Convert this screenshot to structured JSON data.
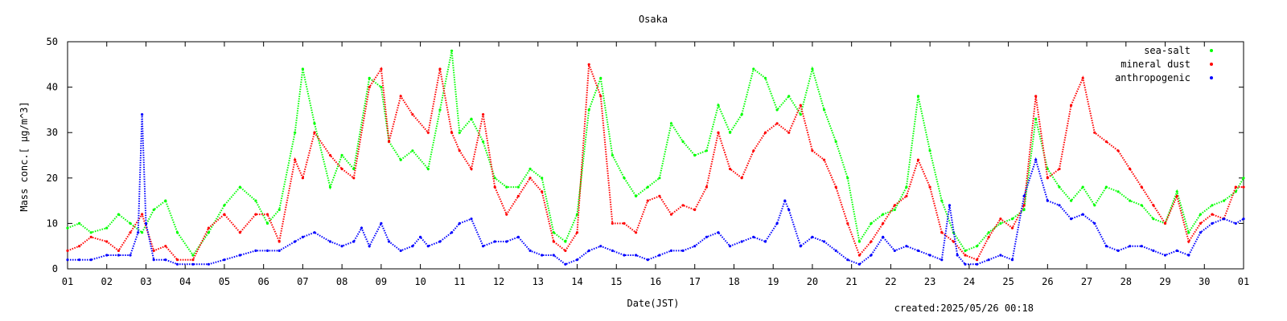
{
  "chart_data": {
    "type": "scatter",
    "title": "Osaka",
    "xlabel": "Date(JST)",
    "ylabel": "Mass conc.[ μg/m^3]",
    "ylim": [
      0,
      50
    ],
    "xlim": [
      1,
      31
    ],
    "y_ticks": [
      "0",
      "10",
      "20",
      "30",
      "40",
      "50"
    ],
    "x_ticks": [
      "01",
      "02",
      "03",
      "04",
      "05",
      "06",
      "07",
      "08",
      "09",
      "10",
      "11",
      "12",
      "13",
      "14",
      "15",
      "16",
      "17",
      "18",
      "19",
      "20",
      "21",
      "22",
      "23",
      "24",
      "25",
      "26",
      "27",
      "28",
      "29",
      "30",
      "01"
    ],
    "legend_position": "top-right",
    "footer": "created:2025/05/26 00:18",
    "series": [
      {
        "name": "sea-salt",
        "color": "#00ff00",
        "points": [
          [
            1.0,
            9
          ],
          [
            1.3,
            10
          ],
          [
            1.6,
            8
          ],
          [
            2.0,
            9
          ],
          [
            2.3,
            12
          ],
          [
            2.6,
            10
          ],
          [
            2.9,
            8
          ],
          [
            3.2,
            13
          ],
          [
            3.5,
            15
          ],
          [
            3.8,
            8
          ],
          [
            4.2,
            3
          ],
          [
            4.6,
            8
          ],
          [
            5.0,
            14
          ],
          [
            5.4,
            18
          ],
          [
            5.8,
            15
          ],
          [
            6.1,
            10
          ],
          [
            6.4,
            13
          ],
          [
            6.8,
            30
          ],
          [
            7.0,
            44
          ],
          [
            7.3,
            32
          ],
          [
            7.7,
            18
          ],
          [
            8.0,
            25
          ],
          [
            8.3,
            22
          ],
          [
            8.7,
            42
          ],
          [
            9.0,
            40
          ],
          [
            9.2,
            28
          ],
          [
            9.5,
            24
          ],
          [
            9.8,
            26
          ],
          [
            10.2,
            22
          ],
          [
            10.5,
            35
          ],
          [
            10.8,
            48
          ],
          [
            11.0,
            30
          ],
          [
            11.3,
            33
          ],
          [
            11.6,
            28
          ],
          [
            11.9,
            20
          ],
          [
            12.2,
            18
          ],
          [
            12.5,
            18
          ],
          [
            12.8,
            22
          ],
          [
            13.1,
            20
          ],
          [
            13.4,
            8
          ],
          [
            13.7,
            6
          ],
          [
            14.0,
            12
          ],
          [
            14.3,
            35
          ],
          [
            14.6,
            42
          ],
          [
            14.9,
            25
          ],
          [
            15.2,
            20
          ],
          [
            15.5,
            16
          ],
          [
            15.8,
            18
          ],
          [
            16.1,
            20
          ],
          [
            16.4,
            32
          ],
          [
            16.7,
            28
          ],
          [
            17.0,
            25
          ],
          [
            17.3,
            26
          ],
          [
            17.6,
            36
          ],
          [
            17.9,
            30
          ],
          [
            18.2,
            34
          ],
          [
            18.5,
            44
          ],
          [
            18.8,
            42
          ],
          [
            19.1,
            35
          ],
          [
            19.4,
            38
          ],
          [
            19.7,
            34
          ],
          [
            20.0,
            44
          ],
          [
            20.3,
            35
          ],
          [
            20.6,
            28
          ],
          [
            20.9,
            20
          ],
          [
            21.2,
            6
          ],
          [
            21.5,
            10
          ],
          [
            21.8,
            12
          ],
          [
            22.1,
            13
          ],
          [
            22.4,
            18
          ],
          [
            22.7,
            38
          ],
          [
            23.0,
            26
          ],
          [
            23.3,
            15
          ],
          [
            23.6,
            8
          ],
          [
            23.9,
            4
          ],
          [
            24.2,
            5
          ],
          [
            24.5,
            8
          ],
          [
            24.8,
            10
          ],
          [
            25.1,
            11
          ],
          [
            25.4,
            13
          ],
          [
            25.7,
            33
          ],
          [
            26.0,
            22
          ],
          [
            26.3,
            18
          ],
          [
            26.6,
            15
          ],
          [
            26.9,
            18
          ],
          [
            27.2,
            14
          ],
          [
            27.5,
            18
          ],
          [
            27.8,
            17
          ],
          [
            28.1,
            15
          ],
          [
            28.4,
            14
          ],
          [
            28.7,
            11
          ],
          [
            29.0,
            10
          ],
          [
            29.3,
            17
          ],
          [
            29.6,
            8
          ],
          [
            29.9,
            12
          ],
          [
            30.2,
            14
          ],
          [
            30.5,
            15
          ],
          [
            30.8,
            17
          ],
          [
            31.0,
            20
          ]
        ]
      },
      {
        "name": "mineral dust",
        "color": "#ff0000",
        "points": [
          [
            1.0,
            4
          ],
          [
            1.3,
            5
          ],
          [
            1.6,
            7
          ],
          [
            2.0,
            6
          ],
          [
            2.3,
            4
          ],
          [
            2.6,
            8
          ],
          [
            2.9,
            12
          ],
          [
            3.2,
            4
          ],
          [
            3.5,
            5
          ],
          [
            3.8,
            2
          ],
          [
            4.2,
            2
          ],
          [
            4.6,
            9
          ],
          [
            5.0,
            12
          ],
          [
            5.4,
            8
          ],
          [
            5.8,
            12
          ],
          [
            6.1,
            12
          ],
          [
            6.4,
            6
          ],
          [
            6.8,
            24
          ],
          [
            7.0,
            20
          ],
          [
            7.3,
            30
          ],
          [
            7.7,
            25
          ],
          [
            8.0,
            22
          ],
          [
            8.3,
            20
          ],
          [
            8.7,
            40
          ],
          [
            9.0,
            44
          ],
          [
            9.2,
            28
          ],
          [
            9.5,
            38
          ],
          [
            9.8,
            34
          ],
          [
            10.2,
            30
          ],
          [
            10.5,
            44
          ],
          [
            10.8,
            30
          ],
          [
            11.0,
            26
          ],
          [
            11.3,
            22
          ],
          [
            11.6,
            34
          ],
          [
            11.9,
            18
          ],
          [
            12.2,
            12
          ],
          [
            12.5,
            16
          ],
          [
            12.8,
            20
          ],
          [
            13.1,
            17
          ],
          [
            13.4,
            6
          ],
          [
            13.7,
            4
          ],
          [
            14.0,
            8
          ],
          [
            14.3,
            45
          ],
          [
            14.6,
            38
          ],
          [
            14.9,
            10
          ],
          [
            15.2,
            10
          ],
          [
            15.5,
            8
          ],
          [
            15.8,
            15
          ],
          [
            16.1,
            16
          ],
          [
            16.4,
            12
          ],
          [
            16.7,
            14
          ],
          [
            17.0,
            13
          ],
          [
            17.3,
            18
          ],
          [
            17.6,
            30
          ],
          [
            17.9,
            22
          ],
          [
            18.2,
            20
          ],
          [
            18.5,
            26
          ],
          [
            18.8,
            30
          ],
          [
            19.1,
            32
          ],
          [
            19.4,
            30
          ],
          [
            19.7,
            36
          ],
          [
            20.0,
            26
          ],
          [
            20.3,
            24
          ],
          [
            20.6,
            18
          ],
          [
            20.9,
            10
          ],
          [
            21.2,
            3
          ],
          [
            21.5,
            6
          ],
          [
            21.8,
            10
          ],
          [
            22.1,
            14
          ],
          [
            22.4,
            16
          ],
          [
            22.7,
            24
          ],
          [
            23.0,
            18
          ],
          [
            23.3,
            8
          ],
          [
            23.6,
            6
          ],
          [
            23.9,
            3
          ],
          [
            24.2,
            2
          ],
          [
            24.5,
            7
          ],
          [
            24.8,
            11
          ],
          [
            25.1,
            9
          ],
          [
            25.4,
            14
          ],
          [
            25.7,
            38
          ],
          [
            26.0,
            20
          ],
          [
            26.3,
            22
          ],
          [
            26.6,
            36
          ],
          [
            26.9,
            42
          ],
          [
            27.2,
            30
          ],
          [
            27.5,
            28
          ],
          [
            27.8,
            26
          ],
          [
            28.1,
            22
          ],
          [
            28.4,
            18
          ],
          [
            28.7,
            14
          ],
          [
            29.0,
            10
          ],
          [
            29.3,
            16
          ],
          [
            29.6,
            6
          ],
          [
            29.9,
            10
          ],
          [
            30.2,
            12
          ],
          [
            30.5,
            11
          ],
          [
            30.8,
            18
          ],
          [
            31.0,
            18
          ]
        ]
      },
      {
        "name": "anthropogenic",
        "color": "#0000ff",
        "points": [
          [
            1.0,
            2
          ],
          [
            1.3,
            2
          ],
          [
            1.6,
            2
          ],
          [
            2.0,
            3
          ],
          [
            2.3,
            3
          ],
          [
            2.6,
            3
          ],
          [
            2.8,
            8
          ],
          [
            2.9,
            34
          ],
          [
            3.0,
            10
          ],
          [
            3.2,
            2
          ],
          [
            3.5,
            2
          ],
          [
            3.8,
            1
          ],
          [
            4.2,
            1
          ],
          [
            4.6,
            1
          ],
          [
            5.0,
            2
          ],
          [
            5.4,
            3
          ],
          [
            5.8,
            4
          ],
          [
            6.1,
            4
          ],
          [
            6.4,
            4
          ],
          [
            6.8,
            6
          ],
          [
            7.0,
            7
          ],
          [
            7.3,
            8
          ],
          [
            7.7,
            6
          ],
          [
            8.0,
            5
          ],
          [
            8.3,
            6
          ],
          [
            8.5,
            9
          ],
          [
            8.7,
            5
          ],
          [
            9.0,
            10
          ],
          [
            9.2,
            6
          ],
          [
            9.5,
            4
          ],
          [
            9.8,
            5
          ],
          [
            10.0,
            7
          ],
          [
            10.2,
            5
          ],
          [
            10.5,
            6
          ],
          [
            10.8,
            8
          ],
          [
            11.0,
            10
          ],
          [
            11.3,
            11
          ],
          [
            11.6,
            5
          ],
          [
            11.9,
            6
          ],
          [
            12.2,
            6
          ],
          [
            12.5,
            7
          ],
          [
            12.8,
            4
          ],
          [
            13.1,
            3
          ],
          [
            13.4,
            3
          ],
          [
            13.7,
            1
          ],
          [
            14.0,
            2
          ],
          [
            14.3,
            4
          ],
          [
            14.6,
            5
          ],
          [
            14.9,
            4
          ],
          [
            15.2,
            3
          ],
          [
            15.5,
            3
          ],
          [
            15.8,
            2
          ],
          [
            16.1,
            3
          ],
          [
            16.4,
            4
          ],
          [
            16.7,
            4
          ],
          [
            17.0,
            5
          ],
          [
            17.3,
            7
          ],
          [
            17.6,
            8
          ],
          [
            17.9,
            5
          ],
          [
            18.2,
            6
          ],
          [
            18.5,
            7
          ],
          [
            18.8,
            6
          ],
          [
            19.1,
            10
          ],
          [
            19.3,
            15
          ],
          [
            19.4,
            13
          ],
          [
            19.7,
            5
          ],
          [
            20.0,
            7
          ],
          [
            20.3,
            6
          ],
          [
            20.6,
            4
          ],
          [
            20.9,
            2
          ],
          [
            21.2,
            1
          ],
          [
            21.5,
            3
          ],
          [
            21.8,
            7
          ],
          [
            22.1,
            4
          ],
          [
            22.4,
            5
          ],
          [
            22.7,
            4
          ],
          [
            23.0,
            3
          ],
          [
            23.3,
            2
          ],
          [
            23.5,
            14
          ],
          [
            23.7,
            3
          ],
          [
            23.9,
            1
          ],
          [
            24.2,
            1
          ],
          [
            24.5,
            2
          ],
          [
            24.8,
            3
          ],
          [
            25.1,
            2
          ],
          [
            25.4,
            16
          ],
          [
            25.7,
            24
          ],
          [
            26.0,
            15
          ],
          [
            26.3,
            14
          ],
          [
            26.6,
            11
          ],
          [
            26.9,
            12
          ],
          [
            27.2,
            10
          ],
          [
            27.5,
            5
          ],
          [
            27.8,
            4
          ],
          [
            28.1,
            5
          ],
          [
            28.4,
            5
          ],
          [
            28.7,
            4
          ],
          [
            29.0,
            3
          ],
          [
            29.3,
            4
          ],
          [
            29.6,
            3
          ],
          [
            29.9,
            8
          ],
          [
            30.2,
            10
          ],
          [
            30.5,
            11
          ],
          [
            30.8,
            10
          ],
          [
            31.0,
            11
          ]
        ]
      }
    ]
  }
}
